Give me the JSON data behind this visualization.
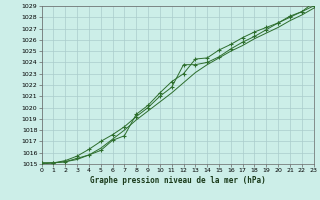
{
  "title": "Graphe pression niveau de la mer (hPa)",
  "bg_color": "#cceee8",
  "grid_color": "#aacccc",
  "line_color": "#2d6e2d",
  "xlim": [
    0,
    23
  ],
  "ylim": [
    1015,
    1029
  ],
  "xticks": [
    0,
    1,
    2,
    3,
    4,
    5,
    6,
    7,
    8,
    9,
    10,
    11,
    12,
    13,
    14,
    15,
    16,
    17,
    18,
    19,
    20,
    21,
    22,
    23
  ],
  "yticks": [
    1015,
    1016,
    1017,
    1018,
    1019,
    1020,
    1021,
    1022,
    1023,
    1024,
    1025,
    1026,
    1027,
    1028,
    1029
  ],
  "series1_x": [
    0,
    1,
    2,
    3,
    4,
    5,
    6,
    7,
    8,
    9,
    10,
    11,
    12,
    13,
    14,
    15,
    16,
    17,
    18,
    19,
    20,
    21,
    22,
    23
  ],
  "series1_y": [
    1015.1,
    1015.1,
    1015.3,
    1015.7,
    1016.3,
    1017.0,
    1017.6,
    1018.3,
    1019.2,
    1020.0,
    1021.0,
    1021.8,
    1023.8,
    1023.8,
    1024.0,
    1024.5,
    1025.2,
    1025.8,
    1026.3,
    1026.9,
    1027.5,
    1028.1,
    1028.5,
    1029.3
  ],
  "series2_x": [
    0,
    1,
    2,
    3,
    4,
    5,
    6,
    7,
    8,
    9,
    10,
    11,
    12,
    13,
    14,
    15,
    16,
    17,
    18,
    19,
    20,
    21,
    22,
    23
  ],
  "series2_y": [
    1015.1,
    1015.1,
    1015.2,
    1015.5,
    1015.8,
    1016.2,
    1017.1,
    1017.5,
    1019.4,
    1020.2,
    1021.3,
    1022.3,
    1023.0,
    1024.3,
    1024.4,
    1025.1,
    1025.6,
    1026.2,
    1026.7,
    1027.1,
    1027.5,
    1028.0,
    1028.5,
    1029.0
  ],
  "series3_x": [
    0,
    1,
    2,
    3,
    4,
    5,
    6,
    7,
    8,
    9,
    10,
    11,
    12,
    13,
    14,
    15,
    16,
    17,
    18,
    19,
    20,
    21,
    22,
    23
  ],
  "series3_y": [
    1015.0,
    1015.1,
    1015.2,
    1015.4,
    1015.8,
    1016.4,
    1017.2,
    1018.0,
    1018.9,
    1019.7,
    1020.5,
    1021.3,
    1022.2,
    1023.1,
    1023.8,
    1024.4,
    1025.0,
    1025.5,
    1026.1,
    1026.6,
    1027.1,
    1027.7,
    1028.2,
    1028.8
  ]
}
